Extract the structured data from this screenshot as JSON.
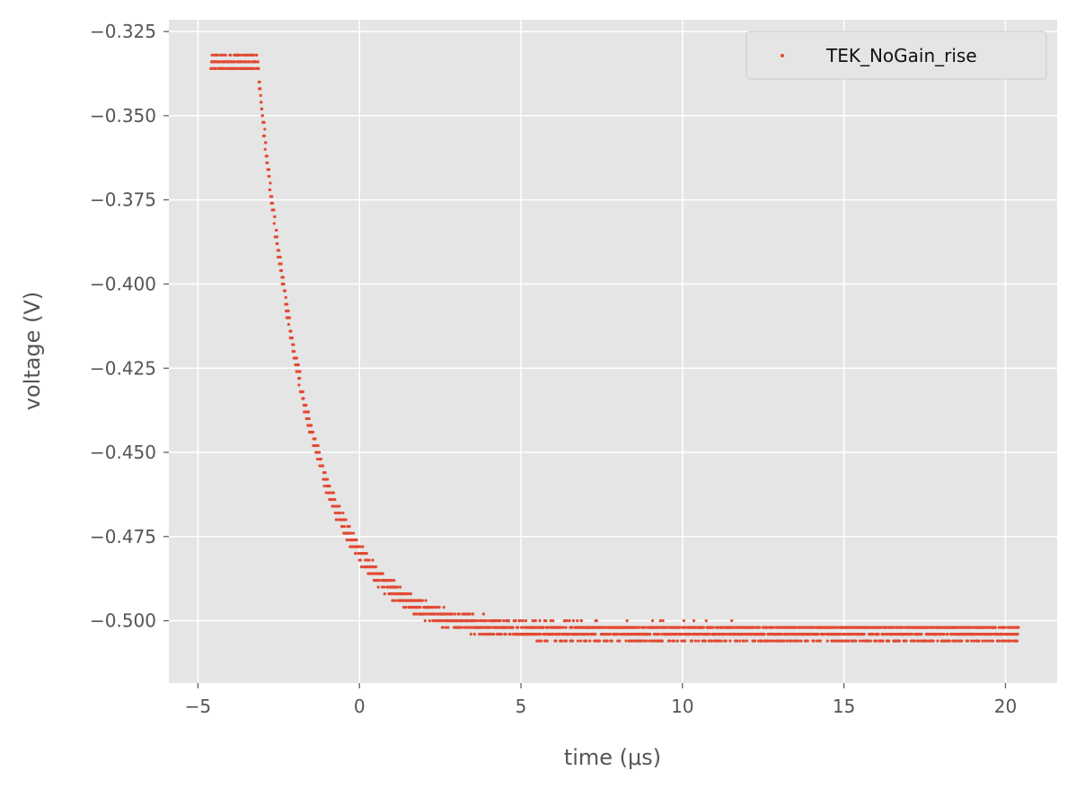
{
  "chart_data": {
    "type": "scatter",
    "title": "",
    "xlabel": "time (μs)",
    "ylabel": "voltage (V)",
    "xlim": [
      -5.9,
      21.6
    ],
    "ylim": [
      -0.5185,
      -0.3215
    ],
    "xticks": [
      -5,
      0,
      5,
      10,
      15,
      20
    ],
    "xtick_labels": [
      "−5",
      "0",
      "5",
      "10",
      "15",
      "20"
    ],
    "yticks": [
      -0.325,
      -0.35,
      -0.375,
      -0.4,
      -0.425,
      -0.45,
      -0.475,
      -0.5
    ],
    "ytick_labels": [
      "−0.325",
      "−0.350",
      "−0.375",
      "−0.400",
      "−0.425",
      "−0.450",
      "−0.475",
      "−0.500"
    ],
    "grid": true,
    "legend_position": "top-right",
    "colors": {
      "series": "#E24A33",
      "background": "#E5E5E5",
      "grid": "#FFFFFF",
      "text": "#555555"
    },
    "series": [
      {
        "name": "TEK_NoGain_rise",
        "marker": "dot",
        "x_range": [
          -4.6,
          20.4
        ],
        "sample_count": 2500,
        "model": {
          "type": "plateau_then_exponential_decay",
          "plateau_until": -3.15,
          "start": -0.3345,
          "final": -0.5035,
          "tau": 1.6
        },
        "quantization_step": 0.002,
        "noise_amplitude": 0.0025
      }
    ]
  }
}
